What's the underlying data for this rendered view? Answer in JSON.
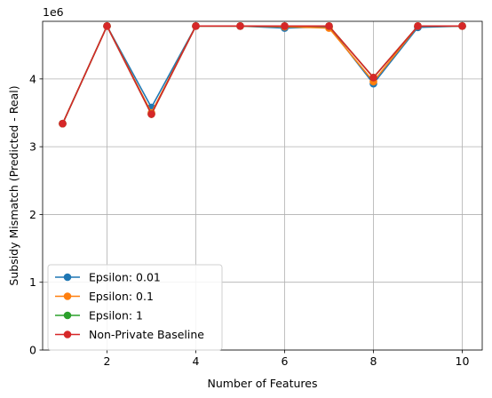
{
  "chart_data": {
    "type": "line",
    "title": "",
    "xlabel": "Number of Features",
    "ylabel": "Subsidy Mismatch (Predicted - Real)",
    "y_scale_label": "1e6",
    "x": [
      1,
      2,
      3,
      4,
      5,
      6,
      7,
      8,
      9,
      10
    ],
    "xlim": [
      0.55,
      10.45
    ],
    "ylim": [
      0,
      4850000
    ],
    "x_ticks": [
      2,
      4,
      6,
      8,
      10
    ],
    "y_ticks": [
      0,
      1000000,
      2000000,
      3000000,
      4000000
    ],
    "y_tick_labels": [
      "0",
      "1",
      "2",
      "3",
      "4"
    ],
    "grid": true,
    "legend_position": "lower-left",
    "series": [
      {
        "name": "Epsilon: 0.01",
        "color": "#1f77b4",
        "values": [
          3340000,
          4780000,
          3580000,
          4780000,
          4780000,
          4750000,
          4770000,
          3930000,
          4760000,
          4780000
        ]
      },
      {
        "name": "Epsilon: 0.1",
        "color": "#ff7f0e",
        "values": [
          3340000,
          4780000,
          3500000,
          4780000,
          4780000,
          4770000,
          4750000,
          3960000,
          4780000,
          4780000
        ]
      },
      {
        "name": "Epsilon: 1",
        "color": "#2ca02c",
        "values": [
          3340000,
          4780000,
          3480000,
          4780000,
          4780000,
          4780000,
          4780000,
          4020000,
          4780000,
          4780000
        ]
      },
      {
        "name": "Non-Private Baseline",
        "color": "#d62728",
        "values": [
          3340000,
          4780000,
          3480000,
          4780000,
          4780000,
          4780000,
          4780000,
          4020000,
          4780000,
          4780000
        ]
      }
    ]
  }
}
